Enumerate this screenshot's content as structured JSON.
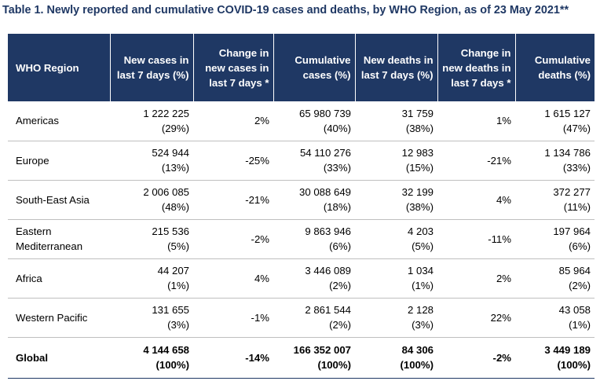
{
  "title": "Table 1. Newly reported and cumulative COVID-19 cases and deaths, by WHO Region, as of 23 May 2021**",
  "headers": [
    "WHO Region",
    "New cases in last 7 days (%)",
    "Change in new cases in last 7 days *",
    "Cumulative cases (%)",
    "New deaths in last 7 days (%)",
    "Change in new deaths in last 7 days *",
    "Cumulative deaths (%)"
  ],
  "rows": [
    {
      "region": "Americas",
      "new_cases": "1 222 225",
      "new_cases_pct": "(29%)",
      "change_cases": "2%",
      "cum_cases": "65 980 739",
      "cum_cases_pct": "(40%)",
      "new_deaths": "31 759",
      "new_deaths_pct": "(38%)",
      "change_deaths": "1%",
      "cum_deaths": "1 615 127",
      "cum_deaths_pct": "(47%)"
    },
    {
      "region": "Europe",
      "new_cases": "524 944",
      "new_cases_pct": "(13%)",
      "change_cases": "-25%",
      "cum_cases": "54 110 276",
      "cum_cases_pct": "(33%)",
      "new_deaths": "12 983",
      "new_deaths_pct": "(15%)",
      "change_deaths": "-21%",
      "cum_deaths": "1 134 786",
      "cum_deaths_pct": "(33%)"
    },
    {
      "region": "South-East Asia",
      "new_cases": "2 006 085",
      "new_cases_pct": "(48%)",
      "change_cases": "-21%",
      "cum_cases": "30 088 649",
      "cum_cases_pct": "(18%)",
      "new_deaths": "32 199",
      "new_deaths_pct": "(38%)",
      "change_deaths": "4%",
      "cum_deaths": "372 277",
      "cum_deaths_pct": "(11%)"
    },
    {
      "region": "Eastern Mediterranean",
      "new_cases": "215 536",
      "new_cases_pct": "(5%)",
      "change_cases": "-2%",
      "cum_cases": "9 863 946",
      "cum_cases_pct": "(6%)",
      "new_deaths": "4 203",
      "new_deaths_pct": "(5%)",
      "change_deaths": "-11%",
      "cum_deaths": "197 964",
      "cum_deaths_pct": "(6%)"
    },
    {
      "region": "Africa",
      "new_cases": "44 207",
      "new_cases_pct": "(1%)",
      "change_cases": "4%",
      "cum_cases": "3 446 089",
      "cum_cases_pct": "(2%)",
      "new_deaths": "1 034",
      "new_deaths_pct": "(1%)",
      "change_deaths": "2%",
      "cum_deaths": "85 964",
      "cum_deaths_pct": "(2%)"
    },
    {
      "region": "Western Pacific",
      "new_cases": "131 655",
      "new_cases_pct": "(3%)",
      "change_cases": "-1%",
      "cum_cases": "2 861 544",
      "cum_cases_pct": "(2%)",
      "new_deaths": "2 128",
      "new_deaths_pct": "(3%)",
      "change_deaths": "22%",
      "cum_deaths": "43 058",
      "cum_deaths_pct": "(1%)"
    }
  ],
  "global": {
    "region": "Global",
    "new_cases": "4 144 658",
    "new_cases_pct": "(100%)",
    "change_cases": "-14%",
    "cum_cases": "166 352 007",
    "cum_cases_pct": "(100%)",
    "new_deaths": "84 306",
    "new_deaths_pct": "(100%)",
    "change_deaths": "-2%",
    "cum_deaths": "3 449 189",
    "cum_deaths_pct": "(100%)"
  },
  "colors": {
    "header_bg": "#1f3864",
    "title_text": "#1f3864"
  }
}
